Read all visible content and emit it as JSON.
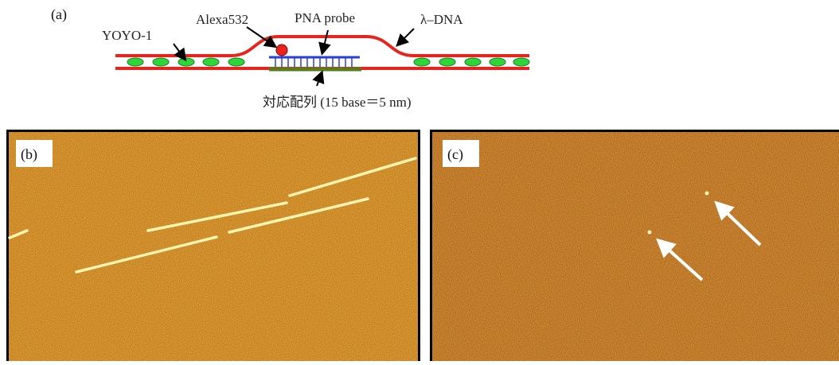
{
  "panel_a": {
    "label": "(a)",
    "yoyo": "YOYO-1",
    "alexa": "Alexa532",
    "probe": "PNA probe",
    "dna": "λ–DNA",
    "sequence": "対応配列 (15 base＝5 nm)"
  },
  "panel_b": {
    "label": "(b)"
  },
  "panel_c": {
    "label": "(c)"
  }
}
